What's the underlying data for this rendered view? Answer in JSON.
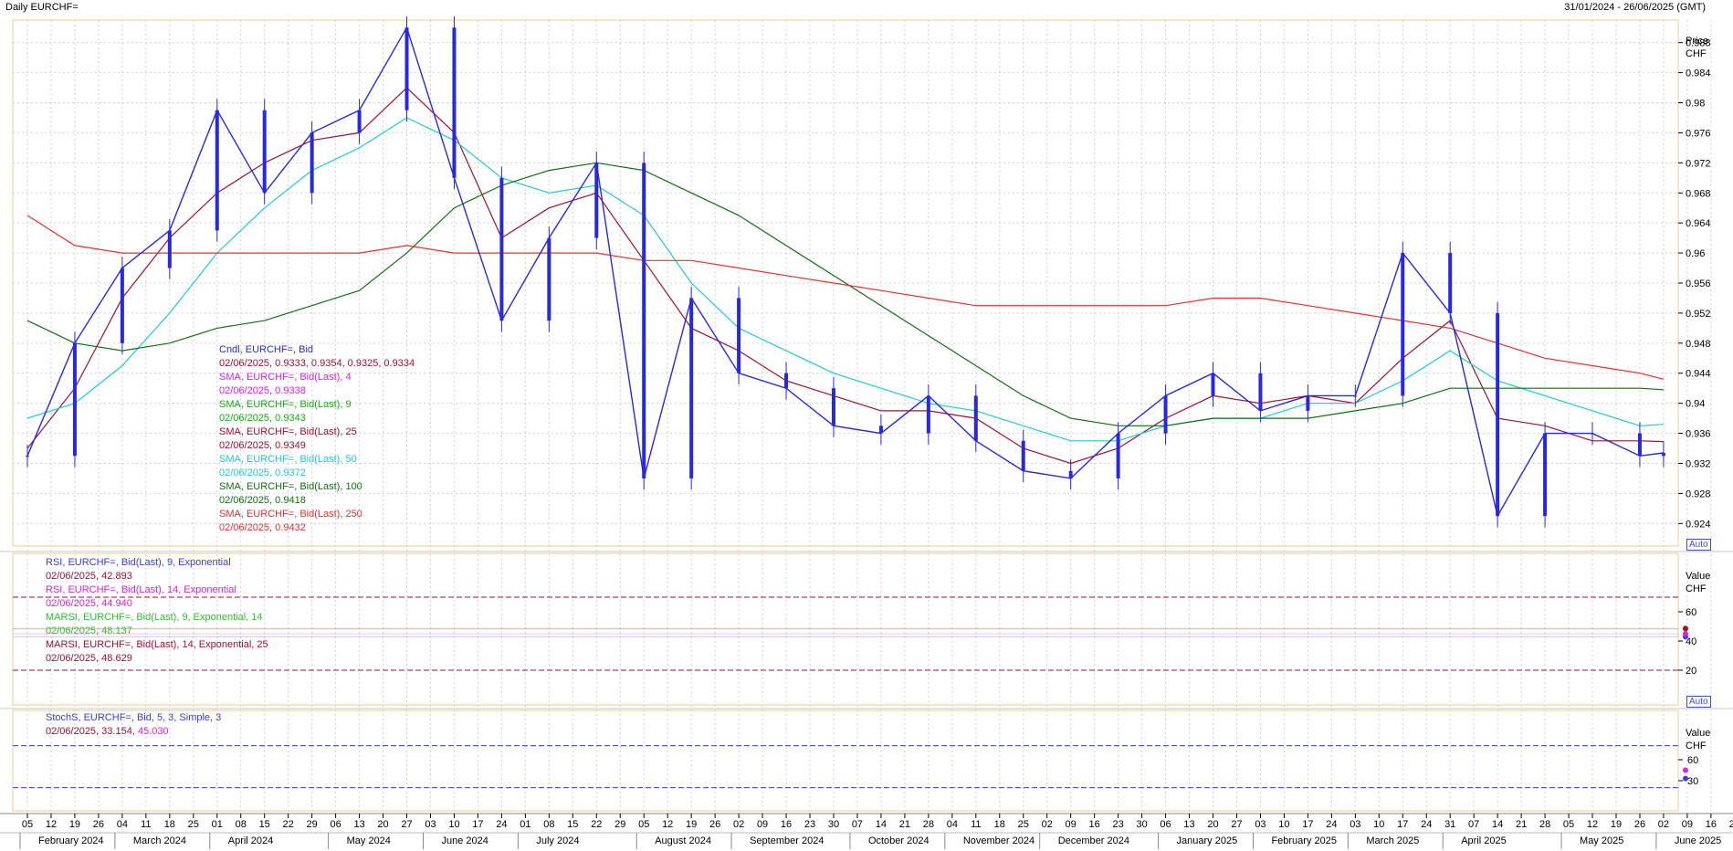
{
  "window": {
    "title": "Daily EURCHF=",
    "date_range": "31/01/2024 - 26/06/2025 (GMT)"
  },
  "colors": {
    "candle": "#2828e0",
    "sma4": "#e020e0",
    "sma9": "#10b010",
    "sma25": "#a01030",
    "sma50": "#20c8d8",
    "sma100": "#107010",
    "sma250": "#e83030",
    "rsi9": "#3a3ae8",
    "rsi14": "#e020e0",
    "marsi14": "#30c030",
    "marsi25": "#a01030",
    "stoch_k": "#3a3ae8",
    "stoch_d": "#e020e0"
  },
  "price_axis": {
    "title": "Price",
    "unit": "CHF",
    "ticks": [
      "0.988",
      "0.984",
      "0.98",
      "0.976",
      "0.972",
      "0.968",
      "0.964",
      "0.96",
      "0.956",
      "0.952",
      "0.948",
      "0.944",
      "0.94",
      "0.936",
      "0.932",
      "0.928",
      "0.924"
    ],
    "auto": "Auto"
  },
  "rsi_axis": {
    "title": "Value",
    "unit": "CHF",
    "ticks": [
      "60",
      "40",
      "20"
    ],
    "auto": "Auto"
  },
  "stoch_axis": {
    "title": "Value",
    "unit": "CHF",
    "ticks": [
      "60",
      "30"
    ]
  },
  "date_ticks": [
    "05",
    "12",
    "19",
    "26",
    "04",
    "11",
    "18",
    "25",
    "01",
    "08",
    "15",
    "22",
    "29",
    "06",
    "13",
    "20",
    "27",
    "03",
    "10",
    "17",
    "24",
    "01",
    "08",
    "15",
    "22",
    "29",
    "05",
    "12",
    "19",
    "26",
    "02",
    "09",
    "16",
    "23",
    "30",
    "07",
    "14",
    "21",
    "28",
    "04",
    "11",
    "18",
    "25",
    "02",
    "09",
    "16",
    "23",
    "30",
    "06",
    "13",
    "20",
    "27",
    "03",
    "10",
    "17",
    "24",
    "03",
    "10",
    "17",
    "24",
    "31",
    "07",
    "14",
    "21",
    "28",
    "05",
    "12",
    "19",
    "26",
    "02",
    "09",
    "16",
    "23"
  ],
  "month_labels": [
    "February 2024",
    "March 2024",
    "April 2024",
    "May 2024",
    "June 2024",
    "July 2024",
    "August 2024",
    "September 2024",
    "October 2024",
    "November 2024",
    "December 2024",
    "January 2025",
    "February 2025",
    "March 2025",
    "April 2025",
    "May 2025",
    "June 2025"
  ],
  "legend_price": [
    {
      "name": "Cndl, EURCHF=, Bid",
      "value": "02/06/2025, 0.9333, 0.9354, 0.9325, 0.9334",
      "color": "#2828e0"
    },
    {
      "name": "SMA, EURCHF=, Bid(Last),  4",
      "value": "02/06/2025, 0.9338",
      "color": "#e020e0"
    },
    {
      "name": "SMA, EURCHF=, Bid(Last),  9",
      "value": "02/06/2025, 0.9343",
      "color": "#10b010"
    },
    {
      "name": "SMA, EURCHF=, Bid(Last),  25",
      "value": "02/06/2025, 0.9349",
      "color": "#a01030"
    },
    {
      "name": "SMA, EURCHF=, Bid(Last),  50",
      "value": "02/06/2025, 0.9372",
      "color": "#20c8d8"
    },
    {
      "name": "SMA, EURCHF=, Bid(Last),  100",
      "value": "02/06/2025, 0.9418",
      "color": "#107010"
    },
    {
      "name": "SMA, EURCHF=, Bid(Last),  250",
      "value": "02/06/2025, 0.9432",
      "color": "#e83030"
    }
  ],
  "legend_rsi": [
    {
      "name": "RSI, EURCHF=, Bid(Last),  9, Exponential",
      "value": "02/06/2025, 42.893",
      "color": "#3a3ae8"
    },
    {
      "name": "RSI, EURCHF=, Bid(Last),  14, Exponential",
      "value": "02/06/2025, 44.940",
      "color": "#e020e0"
    },
    {
      "name": "MARSI, EURCHF=, Bid(Last),  9, Exponential, 14",
      "value": "02/06/2025, 48.137",
      "color": "#30c030"
    },
    {
      "name": "MARSI, EURCHF=, Bid(Last),  14, Exponential, 25",
      "value": "02/06/2025, 48.629",
      "color": "#a01030"
    }
  ],
  "legend_stoch": {
    "name": "StochS, EURCHF=, Bid,  5, 3, Simple, 3",
    "date": "02/06/2025, 33.154, ",
    "value2": "45.030"
  },
  "chart_data": {
    "type": "line",
    "title": "Daily EURCHF=",
    "xlabel": "",
    "ylabel": "Price CHF",
    "ylim": [
      0.921,
      0.991
    ],
    "grid": true,
    "x": [
      "2024-02-05",
      "2024-02-19",
      "2024-03-04",
      "2024-03-18",
      "2024-04-01",
      "2024-04-15",
      "2024-04-29",
      "2024-05-13",
      "2024-05-27",
      "2024-06-10",
      "2024-06-24",
      "2024-07-08",
      "2024-07-22",
      "2024-08-05",
      "2024-08-19",
      "2024-09-02",
      "2024-09-16",
      "2024-09-30",
      "2024-10-14",
      "2024-10-28",
      "2024-11-11",
      "2024-11-25",
      "2024-12-09",
      "2024-12-23",
      "2025-01-06",
      "2025-01-20",
      "2025-02-03",
      "2025-02-17",
      "2025-03-03",
      "2025-03-17",
      "2025-03-31",
      "2025-04-14",
      "2025-04-28",
      "2025-05-12",
      "2025-05-26",
      "2025-06-02"
    ],
    "series": [
      {
        "name": "Cndl, EURCHF=, Bid",
        "values": [
          0.933,
          0.948,
          0.958,
          0.963,
          0.979,
          0.968,
          0.976,
          0.979,
          0.99,
          0.97,
          0.951,
          0.962,
          0.972,
          0.93,
          0.954,
          0.944,
          0.942,
          0.937,
          0.936,
          0.941,
          0.935,
          0.931,
          0.93,
          0.936,
          0.941,
          0.944,
          0.939,
          0.941,
          0.941,
          0.96,
          0.952,
          0.925,
          0.936,
          0.936,
          0.933,
          0.9334
        ]
      },
      {
        "name": "SMA, EURCHF=, Bid(Last),  25",
        "values": [
          0.934,
          0.942,
          0.954,
          0.962,
          0.968,
          0.972,
          0.975,
          0.976,
          0.982,
          0.976,
          0.962,
          0.966,
          0.968,
          0.959,
          0.95,
          0.947,
          0.943,
          0.941,
          0.939,
          0.939,
          0.938,
          0.934,
          0.932,
          0.934,
          0.938,
          0.941,
          0.94,
          0.941,
          0.94,
          0.946,
          0.951,
          0.938,
          0.937,
          0.935,
          0.935,
          0.9349
        ]
      },
      {
        "name": "SMA, EURCHF=, Bid(Last),  50",
        "values": [
          0.938,
          0.94,
          0.945,
          0.952,
          0.96,
          0.966,
          0.971,
          0.974,
          0.978,
          0.975,
          0.97,
          0.968,
          0.969,
          0.965,
          0.956,
          0.95,
          0.947,
          0.944,
          0.942,
          0.94,
          0.939,
          0.937,
          0.935,
          0.935,
          0.937,
          0.938,
          0.938,
          0.94,
          0.94,
          0.943,
          0.947,
          0.943,
          0.941,
          0.939,
          0.937,
          0.9372
        ]
      },
      {
        "name": "SMA, EURCHF=, Bid(Last),  100",
        "values": [
          0.951,
          0.948,
          0.947,
          0.948,
          0.95,
          0.951,
          0.953,
          0.955,
          0.96,
          0.966,
          0.969,
          0.971,
          0.972,
          0.971,
          0.968,
          0.965,
          0.961,
          0.957,
          0.953,
          0.949,
          0.945,
          0.941,
          0.938,
          0.937,
          0.937,
          0.938,
          0.938,
          0.938,
          0.939,
          0.94,
          0.942,
          0.942,
          0.942,
          0.942,
          0.942,
          0.9418
        ]
      },
      {
        "name": "SMA, EURCHF=, Bid(Last),  250",
        "values": [
          0.965,
          0.961,
          0.96,
          0.96,
          0.96,
          0.96,
          0.96,
          0.96,
          0.961,
          0.96,
          0.96,
          0.96,
          0.96,
          0.959,
          0.959,
          0.958,
          0.957,
          0.956,
          0.955,
          0.954,
          0.953,
          0.953,
          0.953,
          0.953,
          0.953,
          0.954,
          0.954,
          0.953,
          0.952,
          0.951,
          0.95,
          0.948,
          0.946,
          0.945,
          0.944,
          0.9432
        ]
      }
    ]
  }
}
